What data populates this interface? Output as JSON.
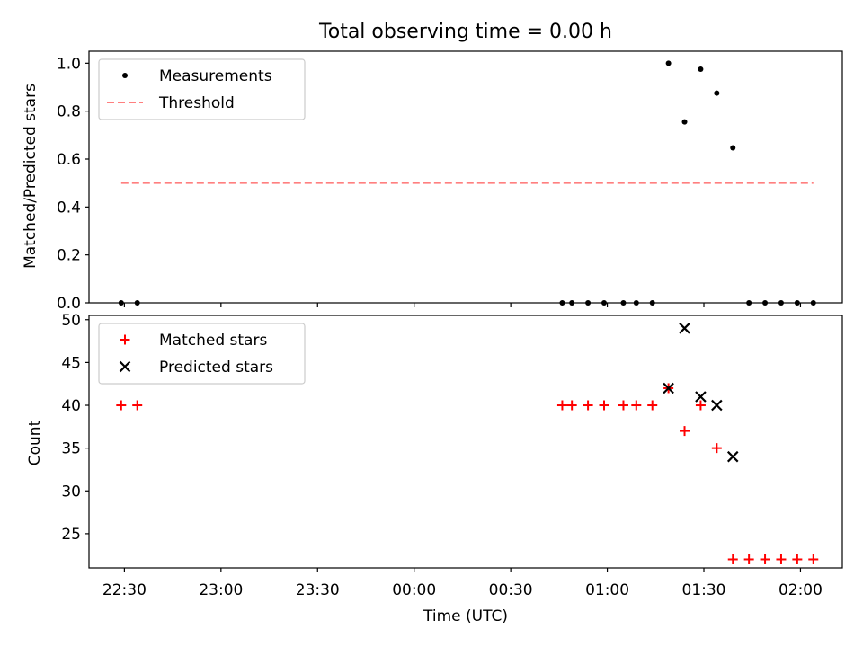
{
  "chart_data": [
    {
      "type": "scatter",
      "title": "Total observing time = 0.00 h",
      "xlabel": "",
      "ylabel": "Matched/Predicted stars",
      "ylim": [
        0,
        1.05
      ],
      "yticks": [
        0.0,
        0.2,
        0.4,
        0.6,
        0.8,
        1.0
      ],
      "ytick_labels": [
        "0.0",
        "0.2",
        "0.4",
        "0.6",
        "0.8",
        "1.0"
      ],
      "xlim": [
        "22:19",
        "02:13"
      ],
      "xticks": [
        "22:30",
        "23:00",
        "23:30",
        "00:00",
        "00:30",
        "01:00",
        "01:30",
        "02:00"
      ],
      "xtick_labels_visible": false,
      "legend": "top-left",
      "series": [
        {
          "name": "Measurements",
          "marker": "dot",
          "color": "#000000",
          "points": [
            [
              "22:29",
              0.0
            ],
            [
              "22:34",
              0.0
            ],
            [
              "00:46",
              0.0
            ],
            [
              "00:49",
              0.0
            ],
            [
              "00:54",
              0.0
            ],
            [
              "00:59",
              0.0
            ],
            [
              "01:05",
              0.0
            ],
            [
              "01:09",
              0.0
            ],
            [
              "01:14",
              0.0
            ],
            [
              "01:19",
              1.0
            ],
            [
              "01:24",
              0.755
            ],
            [
              "01:29",
              0.975
            ],
            [
              "01:34",
              0.875
            ],
            [
              "01:39",
              0.647
            ],
            [
              "01:44",
              0.0
            ],
            [
              "01:49",
              0.0
            ],
            [
              "01:54",
              0.0
            ],
            [
              "01:59",
              0.0
            ],
            [
              "02:04",
              0.0
            ]
          ]
        },
        {
          "name": "Threshold",
          "marker": "dashed-line",
          "color": "#ff7f7f",
          "points": [
            [
              "22:29",
              0.5
            ],
            [
              "02:04",
              0.5
            ]
          ]
        }
      ]
    },
    {
      "type": "scatter",
      "title": "",
      "xlabel": "Time (UTC)",
      "ylabel": "Count",
      "ylim": [
        21,
        50.5
      ],
      "yticks": [
        25,
        30,
        35,
        40,
        45,
        50
      ],
      "ytick_labels": [
        "25",
        "30",
        "35",
        "40",
        "45",
        "50"
      ],
      "xlim": [
        "22:19",
        "02:13"
      ],
      "xticks": [
        "22:30",
        "23:00",
        "23:30",
        "00:00",
        "00:30",
        "01:00",
        "01:30",
        "02:00"
      ],
      "xtick_labels": [
        "22:30",
        "23:00",
        "23:30",
        "00:00",
        "00:30",
        "01:00",
        "01:30",
        "02:00"
      ],
      "legend": "top-left",
      "series": [
        {
          "name": "Matched stars",
          "marker": "plus",
          "color": "#ff0000",
          "points": [
            [
              "22:29",
              40
            ],
            [
              "22:34",
              40
            ],
            [
              "00:46",
              40
            ],
            [
              "00:49",
              40
            ],
            [
              "00:54",
              40
            ],
            [
              "00:59",
              40
            ],
            [
              "01:05",
              40
            ],
            [
              "01:09",
              40
            ],
            [
              "01:14",
              40
            ],
            [
              "01:19",
              42
            ],
            [
              "01:24",
              37
            ],
            [
              "01:29",
              40
            ],
            [
              "01:34",
              35
            ],
            [
              "01:39",
              22
            ],
            [
              "01:44",
              22
            ],
            [
              "01:49",
              22
            ],
            [
              "01:54",
              22
            ],
            [
              "01:59",
              22
            ],
            [
              "02:04",
              22
            ]
          ]
        },
        {
          "name": "Predicted stars",
          "marker": "x",
          "color": "#000000",
          "points": [
            [
              "01:19",
              42
            ],
            [
              "01:24",
              49
            ],
            [
              "01:29",
              41
            ],
            [
              "01:34",
              40
            ],
            [
              "01:39",
              34
            ]
          ]
        }
      ]
    }
  ]
}
